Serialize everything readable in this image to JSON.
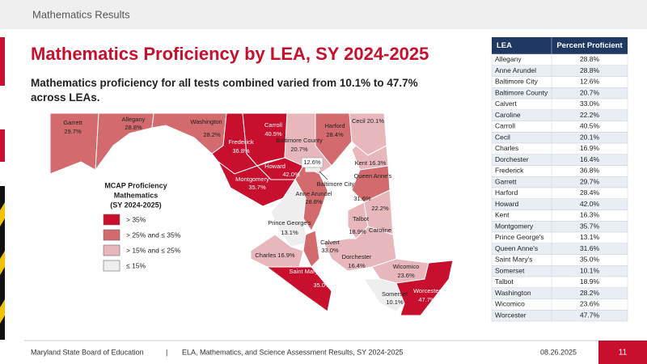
{
  "header": {
    "section": "Mathematics Results"
  },
  "title": "Mathematics Proficiency by LEA, SY 2024-2025",
  "subtitle": "Mathematics proficiency for all tests combined varied from 10.1% to 47.7% across LEAs.",
  "legend": {
    "title": [
      "MCAP Proficiency",
      "Mathematics",
      "(SY 2024-2025)"
    ],
    "items": [
      {
        "label": "> 35%",
        "color": "#c8102e"
      },
      {
        "label": "> 25% and ≤ 35%",
        "color": "#d26a6e"
      },
      {
        "label": "> 15% and ≤ 25%",
        "color": "#e7b7bc"
      },
      {
        "label": "≤ 15%",
        "color": "#eeeeee"
      }
    ]
  },
  "table": {
    "columns": [
      "LEA",
      "Percent Proficient"
    ],
    "rows": [
      {
        "lea": "Allegany",
        "percent": "28.8%",
        "color": "#d26a6e"
      },
      {
        "lea": "Anne Arundel",
        "percent": "28.8%",
        "color": "#d26a6e"
      },
      {
        "lea": "Baltimore City",
        "percent": "12.6%",
        "color": "#eeeeee"
      },
      {
        "lea": "Baltimore County",
        "percent": "20.7%",
        "color": "#e7b7bc"
      },
      {
        "lea": "Calvert",
        "percent": "33.0%",
        "color": "#d26a6e"
      },
      {
        "lea": "Caroline",
        "percent": "22.2%",
        "color": "#e7b7bc"
      },
      {
        "lea": "Carroll",
        "percent": "40.5%",
        "color": "#c8102e"
      },
      {
        "lea": "Cecil",
        "percent": "20.1%",
        "color": "#e7b7bc"
      },
      {
        "lea": "Charles",
        "percent": "16.9%",
        "color": "#e7b7bc"
      },
      {
        "lea": "Dorchester",
        "percent": "16.4%",
        "color": "#e7b7bc"
      },
      {
        "lea": "Frederick",
        "percent": "36.8%",
        "color": "#c8102e"
      },
      {
        "lea": "Garrett",
        "percent": "29.7%",
        "color": "#d26a6e"
      },
      {
        "lea": "Harford",
        "percent": "28.4%",
        "color": "#d26a6e"
      },
      {
        "lea": "Howard",
        "percent": "42.0%",
        "color": "#c8102e"
      },
      {
        "lea": "Kent",
        "percent": "16.3%",
        "color": "#e7b7bc"
      },
      {
        "lea": "Montgomery",
        "percent": "35.7%",
        "color": "#c8102e"
      },
      {
        "lea": "Prince George's",
        "percent": "13.1%",
        "color": "#eeeeee"
      },
      {
        "lea": "Queen Anne's",
        "percent": "31.6%",
        "color": "#d26a6e"
      },
      {
        "lea": "Saint Mary's",
        "percent": "35.0%",
        "color": "#c8102e"
      },
      {
        "lea": "Somerset",
        "percent": "10.1%",
        "color": "#eeeeee"
      },
      {
        "lea": "Talbot",
        "percent": "18.9%",
        "color": "#e7b7bc"
      },
      {
        "lea": "Washington",
        "percent": "28.2%",
        "color": "#d26a6e"
      },
      {
        "lea": "Wicomico",
        "percent": "23.6%",
        "color": "#e7b7bc"
      },
      {
        "lea": "Worcester",
        "percent": "47.7%",
        "color": "#c8102e"
      }
    ]
  },
  "footer": {
    "org": "Maryland State Board of Education",
    "separator": "|",
    "report": "ELA, Mathematics, and Science Assessment Results, SY 2024-2025",
    "date": "08.26.2025",
    "page": "11"
  }
}
